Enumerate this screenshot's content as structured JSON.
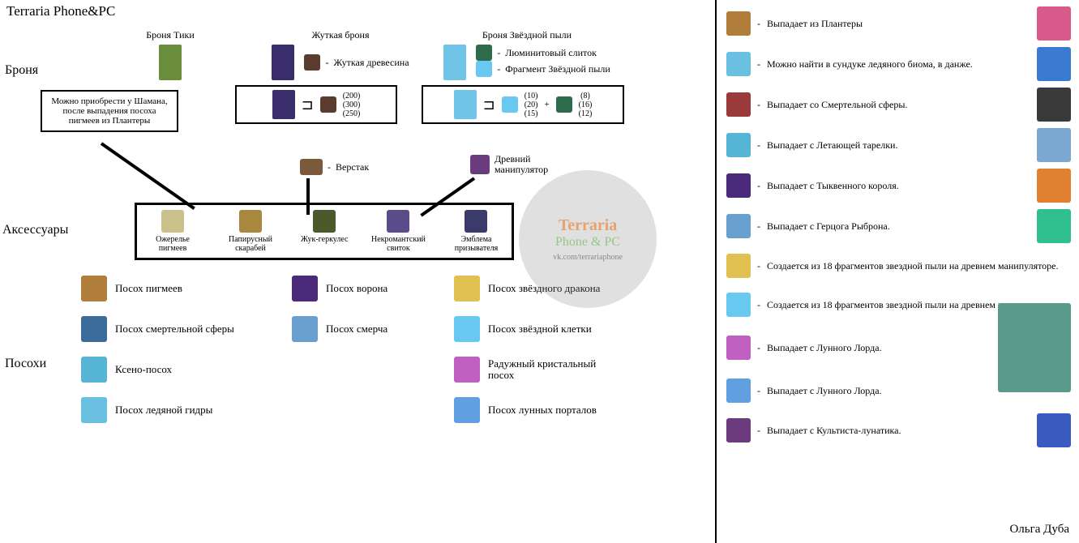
{
  "page_title": "Terraria Phone&PC",
  "sections": {
    "armor": "Броня",
    "accessories": "Аксессуары",
    "staffs": "Посохи"
  },
  "armor_columns": [
    {
      "name": "Броня Тики",
      "sprite_color": "#6b8e3c",
      "recipe_text": "Можно приобрести у Шамана, после выпадения посоха пигмеев из Плантеры"
    },
    {
      "name": "Жуткая броня",
      "sprite_color": "#3a2d6b",
      "materials": [
        {
          "label": "Жуткая древесина",
          "color": "#5a3d2e"
        }
      ],
      "recipe_nums": "(200)\n(300)\n(250)"
    },
    {
      "name": "Броня Звёздной пыли",
      "sprite_color": "#6fc4e8",
      "materials": [
        {
          "label": "Люминитовый слиток",
          "color": "#2d6b4a"
        },
        {
          "label": "Фрагмент Звёздной пыли",
          "color": "#68c8f0"
        }
      ],
      "recipe_nums_a": "(10)\n(20)\n(15)",
      "recipe_nums_b": "(8)\n(16)\n(12)"
    }
  ],
  "stations": {
    "workbench": {
      "label": "Верстак",
      "color": "#7a5a3a"
    },
    "manipulator": {
      "label": "Древний манипулятор",
      "color": "#6b3b7e"
    }
  },
  "accessories": [
    {
      "name": "Ожерелье пигмеев",
      "color": "#c9c08a"
    },
    {
      "name": "Папирусный скарабей",
      "color": "#a8883e"
    },
    {
      "name": "Жук-геркулес",
      "color": "#4a5a2a"
    },
    {
      "name": "Некромантский свиток",
      "color": "#5a4b8a"
    },
    {
      "name": "Эмблема призывателя",
      "color": "#3a3a6b"
    }
  ],
  "staffs_left": [
    {
      "name": "Посох пигмеев",
      "color": "#b07d3a"
    },
    {
      "name": "Посох смертельной сферы",
      "color": "#3a6b9a"
    },
    {
      "name": "Ксено-посох",
      "color": "#56b5d4"
    },
    {
      "name": "Посох ледяной гидры",
      "color": "#6ac0e0"
    }
  ],
  "staffs_mid": [
    {
      "name": "Посох ворона",
      "color": "#4a2a7a"
    },
    {
      "name": "Посох смерча",
      "color": "#6aa0d0"
    }
  ],
  "staffs_right": [
    {
      "name": "Посох звёздного дракона",
      "color": "#e0c050"
    },
    {
      "name": "Посох звёздной клетки",
      "color": "#68c8f0"
    },
    {
      "name": "Радужный кристальный посох",
      "color": "#c060c0"
    },
    {
      "name": "Посох лунных порталов",
      "color": "#60a0e0"
    }
  ],
  "drops": [
    {
      "text": "Выпадает из Плантеры",
      "icon": "#b07d3a",
      "boss": "#d85a8a"
    },
    {
      "text": "Можно найти в сундуке ледяного биома, в данже.",
      "icon": "#6ac0e0",
      "boss": "#3a7ad0"
    },
    {
      "text": "Выпадает со Смертельной сферы.",
      "icon": "#9a3a3a",
      "boss": "#3a3a3a"
    },
    {
      "text": "Выпадает с Летающей тарелки.",
      "icon": "#56b5d4",
      "boss": "#7aa8d0"
    },
    {
      "text": "Выпадает с Тыквенного короля.",
      "icon": "#4a2a7a",
      "boss": "#e08030"
    },
    {
      "text": "Выпадает с Герцога Рыброна.",
      "icon": "#6aa0d0",
      "boss": "#30c090"
    },
    {
      "text": "Создается из 18 фрагментов звездной пыли на древнем манипуляторе.",
      "icon": "#e0c050",
      "boss": null
    },
    {
      "text": "Создается из 18 фрагментов звездной пыли на древнем манипуляторе.",
      "icon": "#68c8f0",
      "boss": null
    },
    {
      "text": "Выпадает с Лунного Лорда.",
      "icon": "#c060c0",
      "boss": "#5a9a8a",
      "big": true
    },
    {
      "text": "Выпадает с Лунного Лорда.",
      "icon": "#60a0e0",
      "boss": null
    },
    {
      "text": "Выпадает с Культиста-лунатика.",
      "icon": "#6b3b7e",
      "boss": "#3a5ac0"
    }
  ],
  "watermark": {
    "title": "Terraria",
    "sub1": "Phone & PC",
    "sub2": "vk.com/terrariaphone"
  },
  "author": "Ольга Дуба"
}
